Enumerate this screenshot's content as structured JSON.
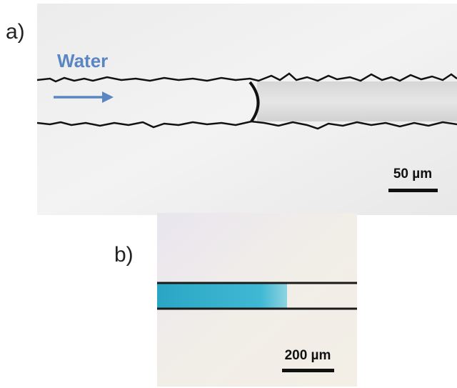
{
  "panel_a": {
    "label": "a)",
    "flow_label": "Water",
    "scale_bar": "50 µm"
  },
  "panel_b": {
    "label": "b)",
    "scale_bar": "200 µm"
  }
}
